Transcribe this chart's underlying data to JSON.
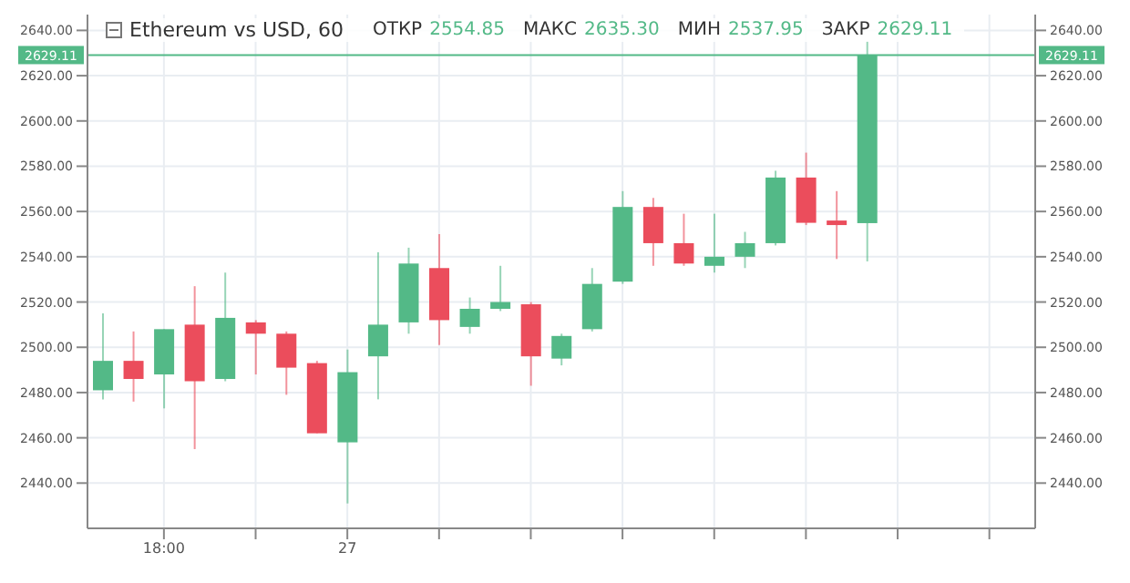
{
  "chart_data": {
    "type": "candlestick",
    "title": "Ethereum vs USD, 60",
    "annotations": [
      "ОТКР",
      "2554.85",
      "МАКС",
      "2635.30",
      "МИН",
      "2537.95",
      "ЗАКР",
      "2629.11"
    ],
    "categories": [
      null,
      null,
      "18:00",
      null,
      null,
      null,
      null,
      null,
      "27",
      null,
      null,
      null,
      null,
      null,
      null,
      null,
      null,
      null,
      null,
      null,
      null,
      null,
      null,
      null,
      null,
      null,
      null,
      null,
      null,
      null,
      null
    ],
    "ohlc": [
      [
        2481,
        2515,
        2477,
        2494
      ],
      [
        2494,
        2507,
        2476,
        2486
      ],
      [
        2488,
        2508,
        2473,
        2508
      ],
      [
        2510,
        2527,
        2455,
        2485
      ],
      [
        2486,
        2533,
        2485,
        2513
      ],
      [
        2511,
        2512,
        2488,
        2506
      ],
      [
        2506,
        2507,
        2479,
        2491
      ],
      [
        2493,
        2494,
        2462,
        2462
      ],
      [
        2458,
        2499,
        2431,
        2489
      ],
      [
        2496,
        2542,
        2477,
        2510
      ],
      [
        2511,
        2544,
        2506,
        2537
      ],
      [
        2535,
        2550,
        2501,
        2512
      ],
      [
        2509,
        2522,
        2506,
        2517
      ],
      [
        2517,
        2536,
        2516,
        2520
      ],
      [
        2519,
        2520,
        2483,
        2496
      ],
      [
        2495,
        2506,
        2492,
        2505
      ],
      [
        2508,
        2535,
        2507,
        2528
      ],
      [
        2529,
        2569,
        2528,
        2562
      ],
      [
        2562,
        2566,
        2536,
        2546
      ],
      [
        2546,
        2559,
        2536,
        2537
      ],
      [
        2536,
        2559,
        2533,
        2540
      ],
      [
        2540,
        2551,
        2535,
        2546
      ],
      [
        2546,
        2578,
        2545,
        2575
      ],
      [
        2575,
        2586,
        2554,
        2555
      ],
      [
        2556,
        2569,
        2539,
        2554
      ],
      [
        2554.85,
        2635.3,
        2537.95,
        2629.11
      ],
      null,
      null,
      null,
      null,
      null
    ],
    "colors": [
      "#53b987",
      "#eb4d5c",
      "#53b987",
      "#eb4d5c",
      "#53b987",
      "#eb4d5c",
      "#eb4d5c",
      "#eb4d5c",
      "#53b987",
      "#53b987",
      "#53b987",
      "#eb4d5c",
      "#53b987",
      "#53b987",
      "#eb4d5c",
      "#53b987",
      "#53b987",
      "#53b987",
      "#eb4d5c",
      "#eb4d5c",
      "#53b987",
      "#53b987",
      "#53b987",
      "#eb4d5c",
      "#eb4d5c",
      "#53b987",
      null,
      null,
      null,
      null,
      null
    ],
    "ylim": [
      2420,
      2647
    ],
    "yticks": [
      {
        "value": 2440,
        "label": "2440.00"
      },
      {
        "value": 2460,
        "label": "2460.00"
      },
      {
        "value": 2480,
        "label": "2480.00"
      },
      {
        "value": 2500,
        "label": "2500.00"
      },
      {
        "value": 2520,
        "label": "2520.00"
      },
      {
        "value": 2540,
        "label": "2540.00"
      },
      {
        "value": 2560,
        "label": "2560.00"
      },
      {
        "value": 2580,
        "label": "2580.00"
      },
      {
        "value": 2600,
        "label": "2600.00"
      },
      {
        "value": 2620,
        "label": "2620.00"
      },
      {
        "value": 2640,
        "label": "2640.00"
      }
    ],
    "y2lim": [
      2420,
      2647
    ],
    "y2ticks": [
      {
        "value": 2440,
        "label": "2440.00"
      },
      {
        "value": 2460,
        "label": "2460.00"
      },
      {
        "value": 2480,
        "label": "2480.00"
      },
      {
        "value": 2500,
        "label": "2500.00"
      },
      {
        "value": 2520,
        "label": "2520.00"
      },
      {
        "value": 2540,
        "label": "2540.00"
      },
      {
        "value": 2560,
        "label": "2560.00"
      },
      {
        "value": 2580,
        "label": "2580.00"
      },
      {
        "value": 2600,
        "label": "2600.00"
      },
      {
        "value": 2620,
        "label": "2620.00"
      },
      {
        "value": 2640,
        "label": "2640.00"
      }
    ],
    "ref_lines": [
      {
        "axis": "y",
        "value": 2629.11,
        "label": "2629.11",
        "color": "#53b987"
      }
    ],
    "grid": true,
    "legend": false
  }
}
